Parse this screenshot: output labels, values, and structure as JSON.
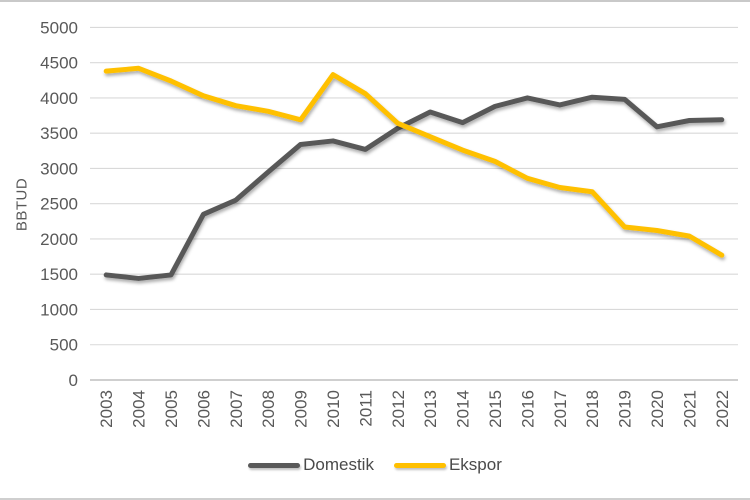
{
  "y_axis_title": "BBTUD",
  "chart_data": {
    "type": "line",
    "title": "",
    "xlabel": "",
    "ylabel": "BBTUD",
    "ylim": [
      0,
      5000
    ],
    "ytick_step": 500,
    "yticks": [
      0,
      500,
      1000,
      1500,
      2000,
      2500,
      3000,
      3500,
      4000,
      4500,
      5000
    ],
    "grid": true,
    "legend_position": "bottom",
    "categories": [
      "2003",
      "2004",
      "2005",
      "2006",
      "2007",
      "2008",
      "2009",
      "2010",
      "2011",
      "2012",
      "2013",
      "2014",
      "2015",
      "2016",
      "2017",
      "2018",
      "2019",
      "2020",
      "2021",
      "2022"
    ],
    "series": [
      {
        "name": "Domestik",
        "color": "#595959",
        "values": [
          1490,
          1440,
          1490,
          2350,
          2550,
          2950,
          3340,
          3390,
          3270,
          3570,
          3800,
          3650,
          3880,
          4000,
          3900,
          4010,
          3980,
          3590,
          3680,
          3690
        ]
      },
      {
        "name": "Ekspor",
        "color": "#FFC000",
        "values": [
          4380,
          4420,
          4240,
          4030,
          3890,
          3810,
          3690,
          4330,
          4060,
          3640,
          3450,
          3260,
          3100,
          2860,
          2730,
          2670,
          2170,
          2120,
          2040,
          1770
        ]
      }
    ]
  },
  "colors": {
    "gridline": "#d9d9d9",
    "axis_line": "#bfbfbf",
    "tick_text": "#595959",
    "background": "#ffffff",
    "frame_border": "#c9c9c9"
  }
}
